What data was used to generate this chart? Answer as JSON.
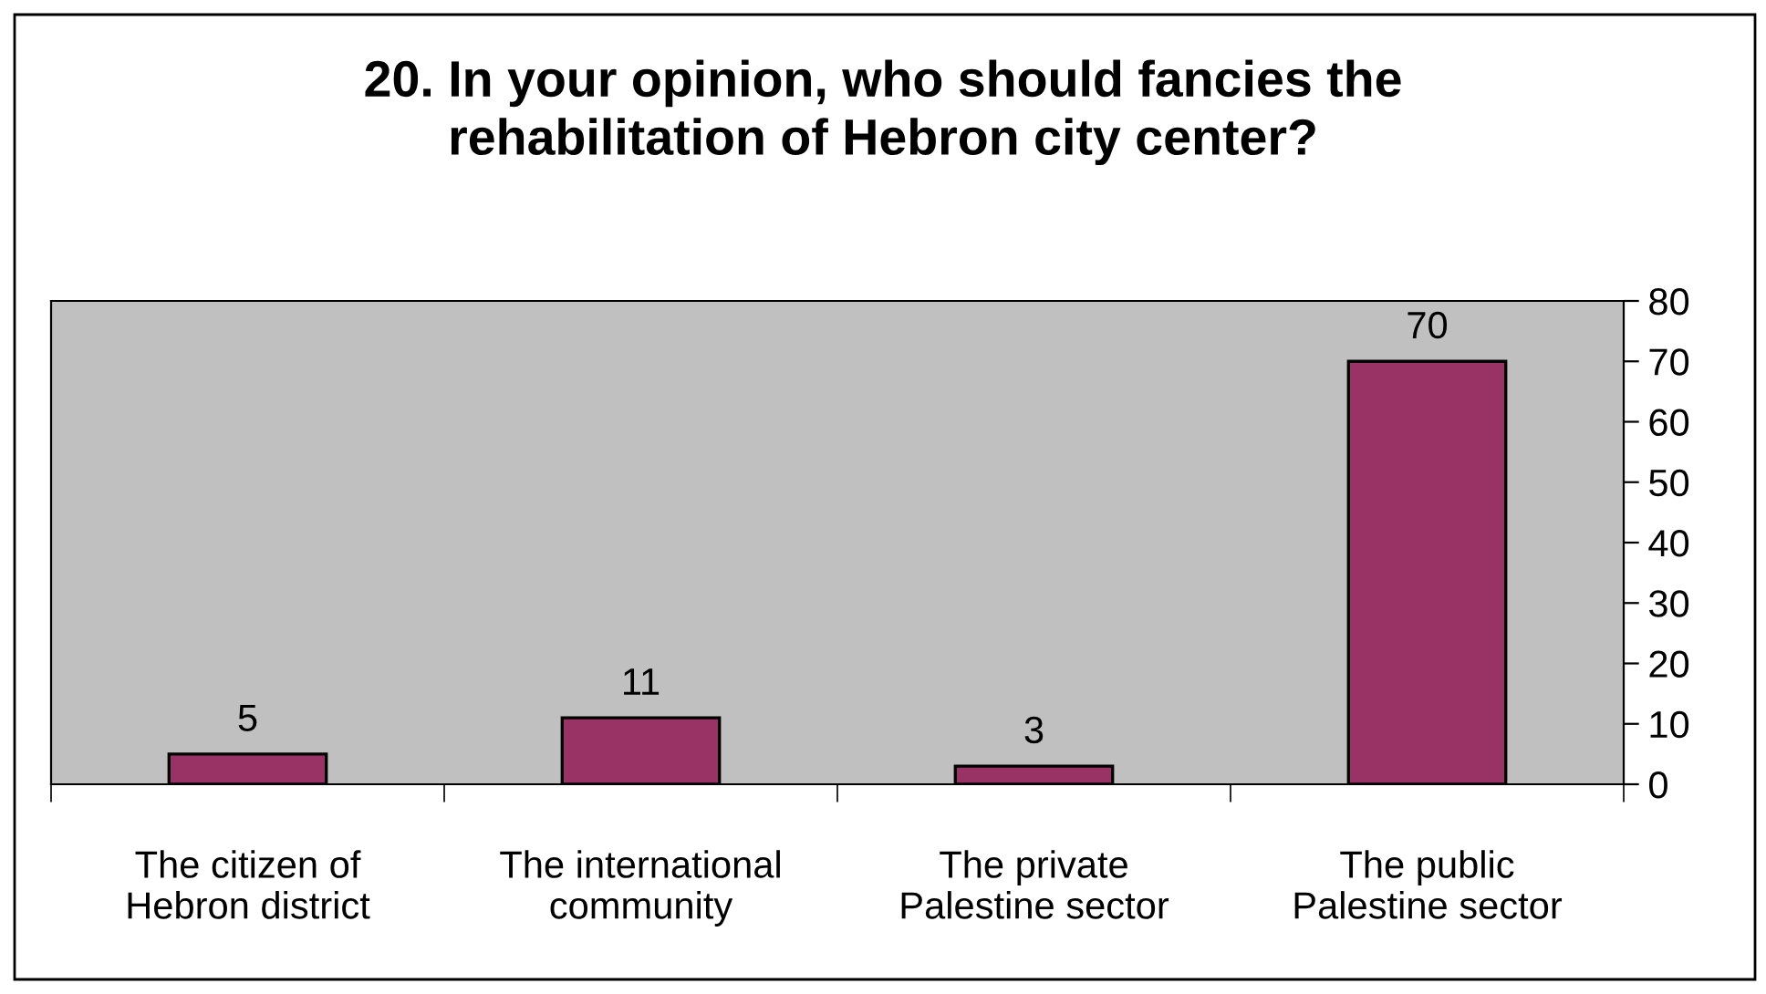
{
  "chart_data": {
    "type": "bar",
    "title": "20. In your opinion, who should fancies the\nrehabilitation of Hebron city center?",
    "categories": [
      "The citizen of\nHebron district",
      "The international\ncommunity",
      "The private\nPalestine sector",
      "The public\nPalestine sector"
    ],
    "values": [
      5,
      11,
      3,
      70
    ],
    "color": "#993366",
    "ylim": [
      0,
      80
    ],
    "yticks": [
      0,
      10,
      20,
      30,
      40,
      50,
      60,
      70,
      80
    ],
    "grid": false,
    "legend": false,
    "data_labels": true
  }
}
